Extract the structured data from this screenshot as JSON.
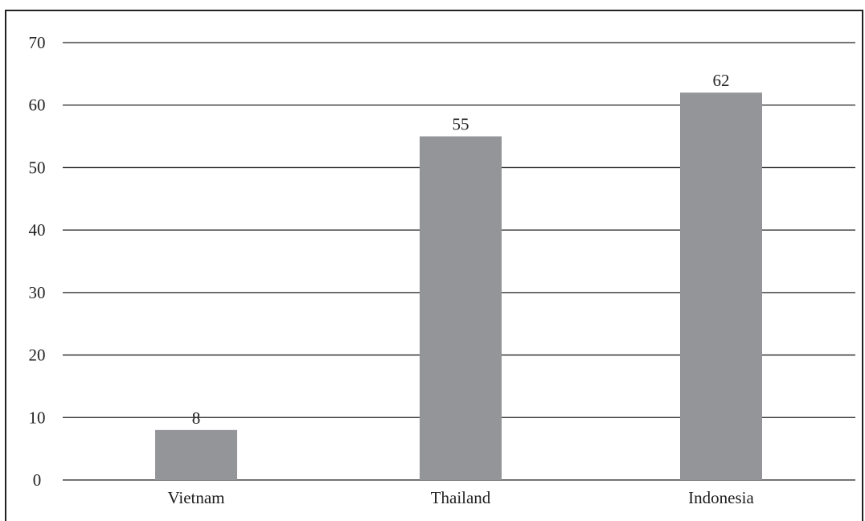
{
  "chart_data": {
    "type": "bar",
    "title": "",
    "xlabel": "",
    "ylabel": "",
    "categories": [
      "Vietnam",
      "Thailand",
      "Indonesia"
    ],
    "values": [
      8,
      55,
      62
    ],
    "data_labels": [
      "8",
      "55",
      "62"
    ],
    "ylim": [
      0,
      70
    ],
    "yticks": [
      0,
      10,
      20,
      30,
      40,
      50,
      60,
      70
    ],
    "ytick_labels": [
      "0",
      "10",
      "20",
      "30",
      "40",
      "50",
      "60",
      "70"
    ],
    "grid": true,
    "legend": "none",
    "colors": {
      "bar": "#939598",
      "grid": "#222222",
      "text": "#222222"
    }
  }
}
